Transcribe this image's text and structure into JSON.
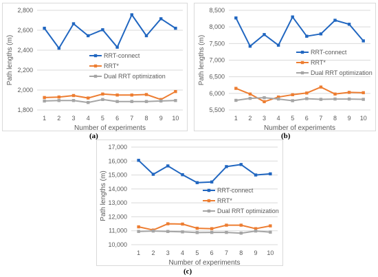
{
  "captions": [
    "(a)",
    "(b)",
    "(c)"
  ],
  "colors": {
    "rrt_connect": "#2066C0",
    "rrt_star": "#ED7D31",
    "dual": "#A5A5A5",
    "grid": "#D9D9D9",
    "text": "#595959"
  },
  "chart_data": [
    {
      "type": "line",
      "xlabel": "Number of experiments",
      "ylabel": "Path lengths (m)",
      "categories": [
        "1",
        "2",
        "3",
        "4",
        "5",
        "6",
        "7",
        "8",
        "9",
        "10"
      ],
      "ylim": [
        1800,
        2800
      ],
      "yticks": [
        1800,
        2000,
        2200,
        2400,
        2600,
        2800
      ],
      "ytick_labels": [
        "1,800",
        "2,000",
        "2,200",
        "2,400",
        "2,600",
        "2,800"
      ],
      "legend_position": "right",
      "grid": true,
      "series": [
        {
          "name": "RRT-connect",
          "values": [
            2620,
            2420,
            2665,
            2545,
            2605,
            2430,
            2755,
            2545,
            2715,
            2620
          ]
        },
        {
          "name": "RRT*",
          "values": [
            1925,
            1930,
            1945,
            1920,
            1960,
            1950,
            1950,
            1955,
            1905,
            1985
          ]
        },
        {
          "name": "Dual RRT optimization",
          "values": [
            1890,
            1895,
            1895,
            1875,
            1905,
            1885,
            1885,
            1885,
            1890,
            1895
          ]
        }
      ]
    },
    {
      "type": "line",
      "xlabel": "Number of experiments",
      "ylabel": "Path lengths (m)",
      "categories": [
        "1",
        "2",
        "3",
        "4",
        "5",
        "6",
        "7",
        "8",
        "9",
        "10"
      ],
      "ylim": [
        5500,
        8500
      ],
      "yticks": [
        5500,
        6000,
        6500,
        7000,
        7500,
        8000,
        8500
      ],
      "ytick_labels": [
        "5,500",
        "6,000",
        "6,500",
        "7,000",
        "7,500",
        "8,000",
        "8,500"
      ],
      "legend_position": "right",
      "grid": true,
      "series": [
        {
          "name": "RRT-connect",
          "values": [
            8270,
            7420,
            7770,
            7450,
            8300,
            7720,
            7790,
            8200,
            8080,
            7580
          ]
        },
        {
          "name": "RRT*",
          "values": [
            6150,
            5980,
            5750,
            5890,
            5960,
            6010,
            6190,
            5980,
            6030,
            6020
          ]
        },
        {
          "name": "Dual RRT optimization",
          "values": [
            5790,
            5850,
            5870,
            5830,
            5780,
            5840,
            5820,
            5830,
            5830,
            5820
          ]
        }
      ]
    },
    {
      "type": "line",
      "xlabel": "Number of experiments",
      "ylabel": "Path lengths (m)",
      "categories": [
        "1",
        "2",
        "3",
        "4",
        "5",
        "6",
        "7",
        "8",
        "9",
        "10"
      ],
      "ylim": [
        10000,
        17000
      ],
      "yticks": [
        10000,
        11000,
        12000,
        13000,
        14000,
        15000,
        16000,
        17000
      ],
      "ytick_labels": [
        "10,000",
        "11,000",
        "12,000",
        "13,000",
        "14,000",
        "15,000",
        "16,000",
        "17,000"
      ],
      "legend_position": "right",
      "grid": true,
      "series": [
        {
          "name": "RRT-connect",
          "values": [
            16050,
            15050,
            15650,
            15020,
            14450,
            14500,
            15600,
            15750,
            15000,
            15080
          ]
        },
        {
          "name": "RRT*",
          "values": [
            11280,
            11050,
            11500,
            11480,
            11180,
            11150,
            11400,
            11400,
            11150,
            11350
          ]
        },
        {
          "name": "Dual RRT optimization",
          "values": [
            10950,
            10980,
            10950,
            10920,
            10870,
            10880,
            10880,
            10830,
            10980,
            10900
          ]
        }
      ]
    }
  ]
}
